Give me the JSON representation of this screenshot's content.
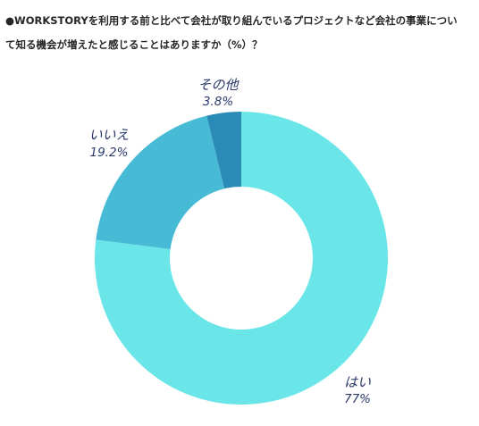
{
  "title_lines": [
    "●WORKSTORYを利用する前と比べて会社が取り組んでいるプロジェクトなど会社の事業につい",
    "て知る機会が増えたと感じることはありますか（%）？"
  ],
  "chart_data": {
    "type": "pie",
    "donut": true,
    "title": "●WORKSTORYを利用する前と比べて会社が取り組んでいるプロジェクトなど会社の事業について知る機会が増えたと感じることはありますか（%）？",
    "unit": "%",
    "slices": [
      {
        "label": "はい",
        "value": 77,
        "value_label": "77%",
        "color": "#6ae6e8"
      },
      {
        "label": "いいえ",
        "value": 19.2,
        "value_label": "19.2%",
        "color": "#47bad6"
      },
      {
        "label": "その他",
        "value": 3.8,
        "value_label": "3.8%",
        "color": "#2b8bb7"
      }
    ],
    "start_angle": "12 o'clock",
    "direction": "clockwise",
    "legend": "none"
  }
}
